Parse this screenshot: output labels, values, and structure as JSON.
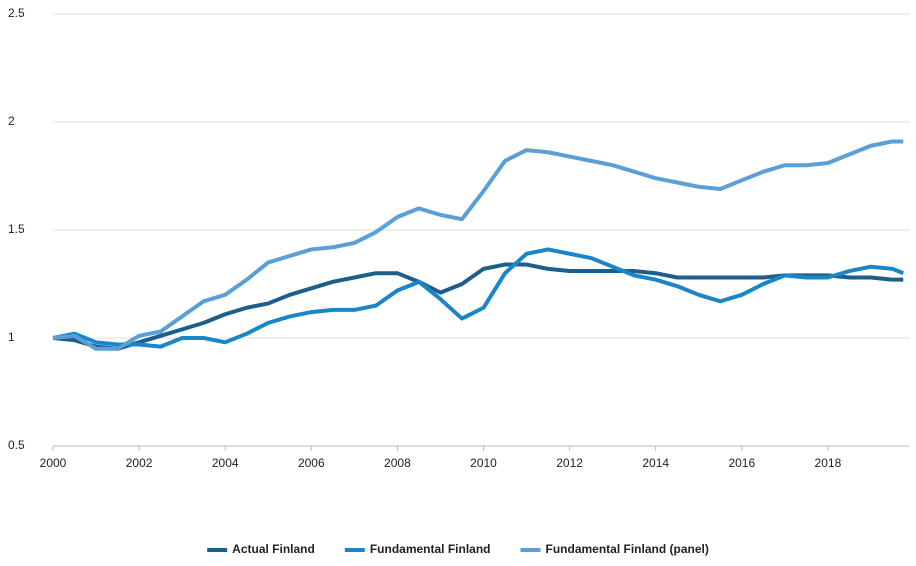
{
  "chart_data": {
    "type": "line",
    "x": [
      2000,
      2000.5,
      2001,
      2001.5,
      2002,
      2002.5,
      2003,
      2003.5,
      2004,
      2004.5,
      2005,
      2005.5,
      2006,
      2006.5,
      2007,
      2007.5,
      2008,
      2008.5,
      2009,
      2009.5,
      2010,
      2010.5,
      2011,
      2011.5,
      2012,
      2012.5,
      2013,
      2013.5,
      2014,
      2014.5,
      2015,
      2015.5,
      2016,
      2016.5,
      2017,
      2017.5,
      2018,
      2018.5,
      2019,
      2019.5,
      2019.75
    ],
    "series": [
      {
        "name": "Actual Finland",
        "color": "#1c5f8c",
        "values": [
          1.0,
          0.99,
          0.96,
          0.95,
          0.98,
          1.01,
          1.04,
          1.07,
          1.11,
          1.14,
          1.16,
          1.2,
          1.23,
          1.26,
          1.28,
          1.3,
          1.3,
          1.26,
          1.21,
          1.25,
          1.32,
          1.34,
          1.34,
          1.32,
          1.31,
          1.31,
          1.31,
          1.31,
          1.3,
          1.28,
          1.28,
          1.28,
          1.28,
          1.28,
          1.29,
          1.29,
          1.29,
          1.28,
          1.28,
          1.27,
          1.27
        ]
      },
      {
        "name": "Fundamental Finland",
        "color": "#1a86c8",
        "values": [
          1.0,
          1.02,
          0.98,
          0.97,
          0.97,
          0.96,
          1.0,
          1.0,
          0.98,
          1.02,
          1.07,
          1.1,
          1.12,
          1.13,
          1.13,
          1.15,
          1.22,
          1.26,
          1.18,
          1.09,
          1.14,
          1.3,
          1.39,
          1.41,
          1.39,
          1.37,
          1.33,
          1.29,
          1.27,
          1.24,
          1.2,
          1.17,
          1.2,
          1.25,
          1.29,
          1.28,
          1.28,
          1.31,
          1.33,
          1.32,
          1.3
        ]
      },
      {
        "name": "Fundamental Finland (panel)",
        "color": "#5a9fd6",
        "values": [
          1.0,
          1.01,
          0.95,
          0.95,
          1.01,
          1.03,
          1.1,
          1.17,
          1.2,
          1.27,
          1.35,
          1.38,
          1.41,
          1.42,
          1.44,
          1.49,
          1.56,
          1.6,
          1.57,
          1.55,
          1.68,
          1.82,
          1.87,
          1.86,
          1.84,
          1.82,
          1.8,
          1.77,
          1.74,
          1.72,
          1.7,
          1.69,
          1.73,
          1.77,
          1.8,
          1.8,
          1.81,
          1.85,
          1.89,
          1.91,
          1.91
        ]
      }
    ],
    "xlim": [
      2000,
      2020
    ],
    "xticks": [
      2000,
      2002,
      2004,
      2006,
      2008,
      2010,
      2012,
      2014,
      2016,
      2018
    ],
    "ylim": [
      0.5,
      2.5
    ],
    "yticks": [
      0.5,
      1,
      1.5,
      2,
      2.5
    ],
    "grid": true,
    "legend": "bottom"
  }
}
